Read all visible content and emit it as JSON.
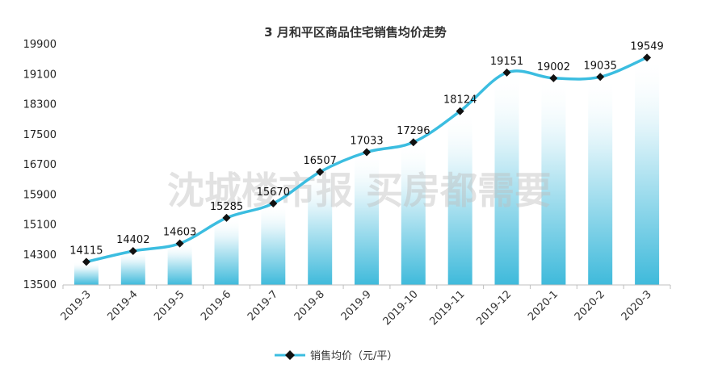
{
  "chart_data": {
    "type": "line",
    "title": "3 月和平区商品住宅销售均价走势",
    "categories": [
      "2019-3",
      "2019-4",
      "2019-5",
      "2019-6",
      "2019-7",
      "2019-8",
      "2019-9",
      "2019-10",
      "2019-11",
      "2019-12",
      "2020-1",
      "2020-2",
      "2020-3"
    ],
    "series": [
      {
        "name": "销售均价（元/平）",
        "values": [
          14115,
          14402,
          14603,
          15285,
          15670,
          16507,
          17033,
          17296,
          18124,
          19151,
          19002,
          19035,
          19549
        ],
        "color": "#3bbde0",
        "marker": "diamond",
        "marker_color": "#111111",
        "smooth": true
      }
    ],
    "bars": {
      "values_from_series": 0,
      "gradient_top": "#ffffff",
      "gradient_bottom": "#3fbadb"
    },
    "yticks": [
      13500,
      14300,
      15100,
      15900,
      16700,
      17500,
      18300,
      19100,
      19900
    ],
    "ylim": [
      13500,
      19900
    ],
    "xlabel": "",
    "ylabel": "",
    "grid": false,
    "legend_position": "bottom",
    "watermark": "沈城楼市报 买房都需要"
  }
}
